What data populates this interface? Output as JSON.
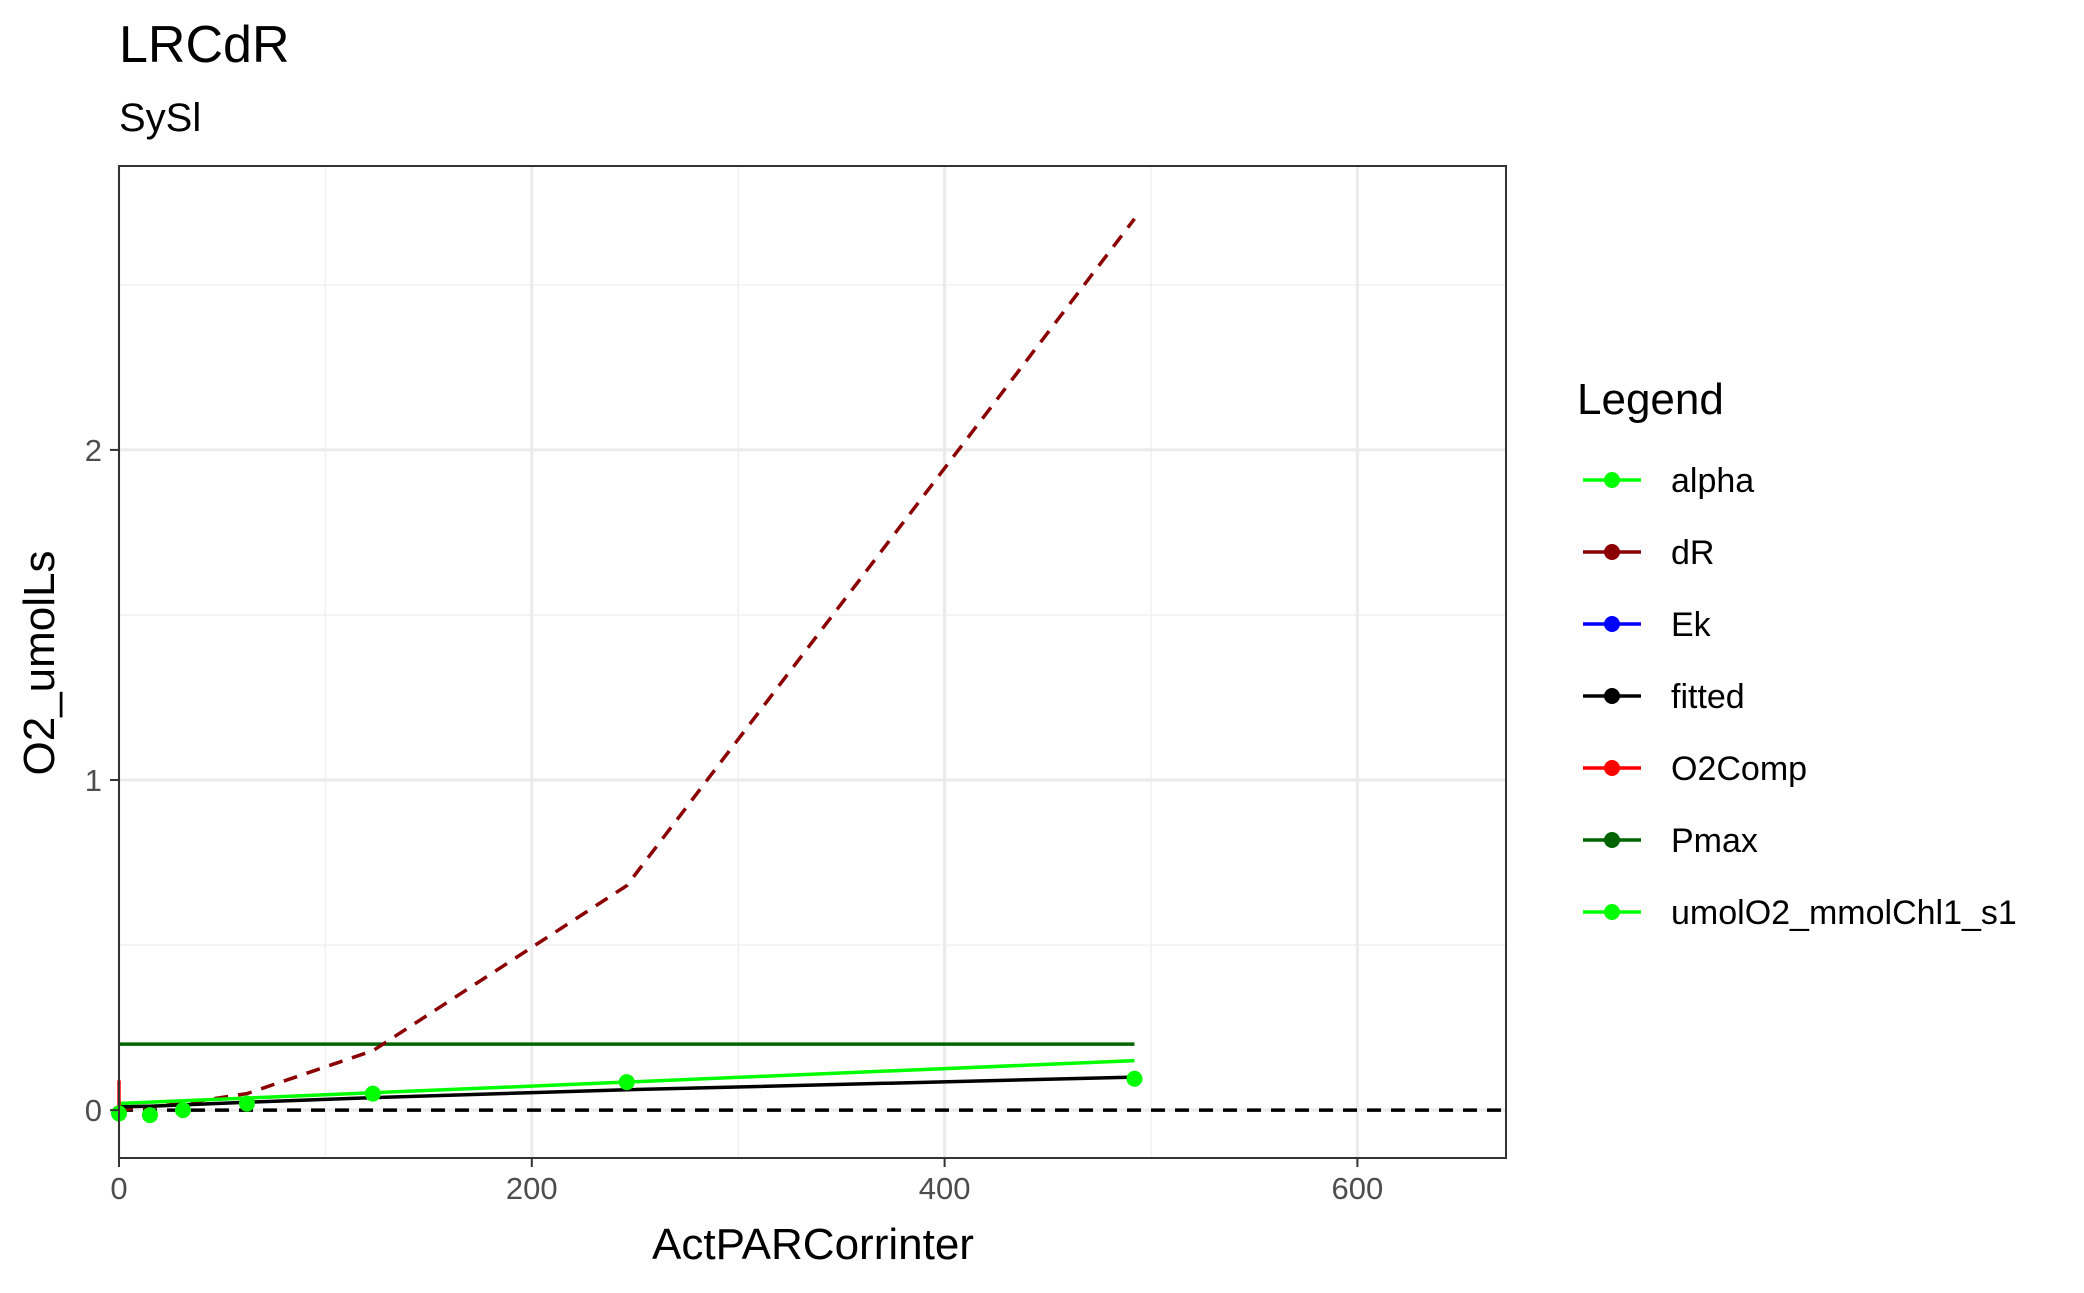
{
  "chart_data": {
    "type": "line",
    "title": "LRCdR",
    "subtitle": "SySl",
    "xlabel": "ActPARCorrinter",
    "ylabel": "O2_umolLs",
    "xlim": [
      0,
      672
    ],
    "ylim": [
      -0.145,
      2.86
    ],
    "x_ticks": [
      0,
      200,
      400,
      600
    ],
    "y_ticks": [
      0,
      1,
      2
    ],
    "x_minor_grid": [
      100,
      300,
      500
    ],
    "y_minor_grid": [
      0.5,
      1.5,
      2.5
    ],
    "grid": true,
    "legend_position": "right",
    "legend_title": "Legend",
    "reference_line": {
      "y": 0,
      "style": "dashed",
      "color": "#000000"
    },
    "series": [
      {
        "name": "alpha",
        "color": "#00FF00",
        "style": "solid",
        "points": false,
        "x": [
          0,
          492
        ],
        "y": [
          0.02,
          0.15
        ]
      },
      {
        "name": "dR",
        "color": "#8B0000",
        "style": "dashed",
        "points": false,
        "x": [
          0,
          15,
          31,
          62,
          123,
          246,
          492
        ],
        "y": [
          0.0,
          0.01,
          0.02,
          0.05,
          0.18,
          0.68,
          2.7
        ]
      },
      {
        "name": "Ek",
        "color": "#0000FF",
        "style": "solid",
        "points": false,
        "x": [],
        "y": []
      },
      {
        "name": "fitted",
        "color": "#000000",
        "style": "solid",
        "points": false,
        "x": [
          0,
          15,
          31,
          62,
          123,
          246,
          492
        ],
        "y": [
          0.01,
          0.012,
          0.016,
          0.024,
          0.038,
          0.062,
          0.1
        ]
      },
      {
        "name": "O2Comp",
        "color": "#FF0000",
        "style": "solid",
        "points": false,
        "x": [
          0,
          0
        ],
        "y": [
          0.0,
          0.09
        ]
      },
      {
        "name": "Pmax",
        "color": "#006400",
        "style": "solid",
        "points": false,
        "x": [
          0,
          492
        ],
        "y": [
          0.2,
          0.2
        ]
      },
      {
        "name": "umolO2_mmolChl1_s1",
        "color": "#00FF00",
        "style": "none",
        "points": true,
        "x": [
          0,
          15,
          31,
          62,
          123,
          246,
          492
        ],
        "y": [
          -0.01,
          -0.015,
          0.0,
          0.02,
          0.05,
          0.085,
          0.095
        ]
      }
    ]
  }
}
